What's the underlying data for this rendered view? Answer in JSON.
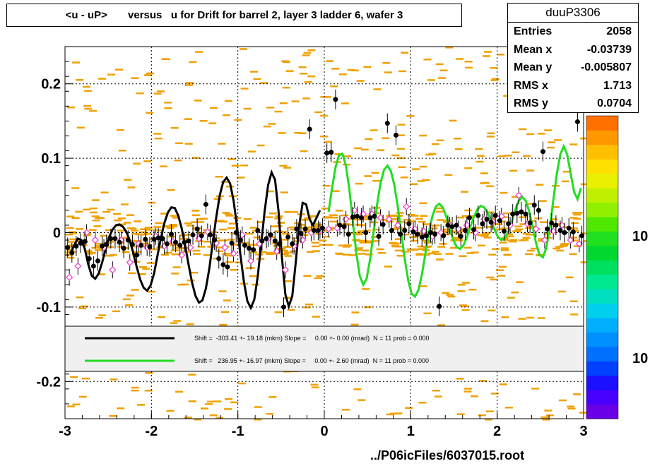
{
  "title": "<u - uP>       versus   u for Drift for barrel 2, layer 3 ladder 6, wafer 3",
  "footer": "../P06icFiles/6037015.root",
  "stats": {
    "name": "duuP3306",
    "rows": [
      {
        "label": "Entries",
        "value": "2058"
      },
      {
        "label": "Mean x",
        "value": "-0.03739"
      },
      {
        "label": "Mean y",
        "value": "-0.005807"
      },
      {
        "label": "RMS x",
        "value": "1.713"
      },
      {
        "label": "RMS y",
        "value": "0.0704"
      }
    ]
  },
  "colors": {
    "histogram_cells": "#f0a000",
    "black_fit": "#000000",
    "green_fit": "#22dd22",
    "open_markers": "#ee44cc",
    "legend_bg": "#f0f0f0"
  },
  "palette": [
    "#6a00e8",
    "#4800ff",
    "#1a10ff",
    "#0040ff",
    "#0070ff",
    "#0090ff",
    "#00b0ff",
    "#00d0ee",
    "#00e0c0",
    "#00e890",
    "#00e060",
    "#00d830",
    "#20e020",
    "#50e800",
    "#90f000",
    "#c0f000",
    "#e8f000",
    "#ffe000",
    "#ffc000",
    "#ff9800",
    "#ff7000"
  ],
  "chart_data": {
    "type": "scatter",
    "title": "<u - uP>       versus   u for Drift for barrel 2, layer 3 ladder 6, wafer 3",
    "xlabel": "",
    "ylabel": "",
    "xlim": [
      -3,
      3
    ],
    "ylim": [
      -0.25,
      0.25
    ],
    "x_ticks": [
      "-3",
      "-2",
      "-1",
      "0",
      "1",
      "2",
      "3"
    ],
    "y_ticks": [
      "0.2",
      "0.1",
      "0",
      "-0.1",
      "-0.2"
    ],
    "grid": true,
    "z_axis_labels": [
      "10",
      "10"
    ],
    "series": [
      {
        "marker": "black-filled",
        "x": [
          -2.97,
          -2.92,
          -2.87,
          -2.82,
          -2.77,
          -2.72,
          -2.67,
          -2.62,
          -2.57,
          -2.52,
          -2.47,
          -2.42,
          -2.37,
          -2.32,
          -2.27,
          -2.22,
          -2.17,
          -2.12,
          -2.07,
          -2.02,
          -1.97,
          -1.92,
          -1.87,
          -1.82,
          -1.77,
          -1.72,
          -1.67,
          -1.62,
          -1.57,
          -1.52,
          -1.47,
          -1.42,
          -1.37,
          -1.32,
          -1.27,
          -1.22,
          -1.17,
          -1.12,
          -1.07,
          -1.02,
          -0.97,
          -0.92,
          -0.87,
          -0.82,
          -0.77,
          -0.72,
          -0.67,
          -0.62,
          -0.57,
          -0.52,
          -0.47,
          -0.42,
          -0.37,
          -0.32,
          -0.27,
          -0.22,
          -0.17,
          -0.12,
          -0.07,
          -0.02,
          0.03,
          0.08,
          0.13,
          0.18,
          0.23,
          0.28,
          0.33,
          0.38,
          0.43,
          0.48,
          0.53,
          0.58,
          0.63,
          0.68,
          0.73,
          0.78,
          0.83,
          0.88,
          0.93,
          0.98,
          1.03,
          1.08,
          1.13,
          1.18,
          1.23,
          1.28,
          1.33,
          1.38,
          1.43,
          1.48,
          1.53,
          1.58,
          1.63,
          1.68,
          1.73,
          1.78,
          1.83,
          1.88,
          1.93,
          1.98,
          2.03,
          2.08,
          2.13,
          2.18,
          2.23,
          2.28,
          2.33,
          2.38,
          2.43,
          2.48,
          2.53,
          2.58,
          2.63,
          2.68,
          2.73,
          2.78,
          2.83,
          2.88,
          2.93,
          2.98
        ],
        "y": [
          -0.02,
          -0.027,
          -0.018,
          -0.014,
          -0.012,
          -0.035,
          -0.045,
          -0.038,
          -0.018,
          -0.016,
          -0.008,
          -0.008,
          -0.013,
          -0.021,
          -0.01,
          -0.016,
          -0.03,
          -0.017,
          -0.009,
          -0.019,
          -0.009,
          -0.007,
          -0.008,
          -0.015,
          -0.002,
          -0.013,
          -0.017,
          -0.013,
          -0.011,
          -0.003,
          0.005,
          -0.004,
          0.038,
          -0.003,
          -0.01,
          -0.035,
          -0.043,
          -0.046,
          -0.014,
          0.0,
          -0.01,
          -0.017,
          -0.021,
          -0.023,
          0.003,
          -0.011,
          -0.008,
          -0.003,
          -0.011,
          -0.015,
          -0.1,
          -0.006,
          -0.015,
          0.005,
          -0.001,
          0.005,
          0.139,
          0.003,
          0.003,
          0.006,
          0.107,
          0.108,
          0.179,
          0.01,
          0.008,
          -0.002,
          0.021,
          0.022,
          0.02,
          0.0,
          0.02,
          0.022,
          -0.005,
          0.011,
          0.147,
          0.003,
          0.131,
          -0.002,
          0.003,
          0.012,
          0.001,
          -0.002,
          -0.006,
          -0.004,
          0.0,
          -0.002,
          -0.099,
          -0.004,
          0.01,
          0.008,
          0.01,
          -0.005,
          0.003,
          0.02,
          0.004,
          0.023,
          0.012,
          0.018,
          0.014,
          0.023,
          0.016,
          0.002,
          0.012,
          0.025,
          0.026,
          0.028,
          0.025,
          0.013,
          0.037,
          0.03,
          0.109,
          0.005,
          0.013,
          0.01,
          0.003,
          0.0,
          0.006,
          0.001,
          0.149,
          -0.004
        ]
      },
      {
        "marker": "pink-open",
        "x": [
          -2.95,
          -2.85,
          -2.75,
          -2.65,
          -2.55,
          -2.45,
          -2.35,
          -2.25,
          -2.15,
          -2.05,
          -1.95,
          -1.85,
          -1.75,
          -1.65,
          -1.55,
          -1.45,
          -1.35,
          -1.25,
          -1.15,
          -1.05,
          -0.95,
          -0.85,
          -0.75,
          -0.65,
          -0.55,
          -0.45,
          -0.35,
          -0.25,
          -0.15,
          -0.05,
          0.05,
          0.15,
          0.25,
          0.35,
          0.45,
          0.55,
          0.65,
          0.75,
          0.85,
          0.95,
          1.05,
          1.15,
          1.25,
          1.35,
          1.45,
          1.55,
          1.65,
          1.75,
          1.85,
          1.95,
          2.05,
          2.15,
          2.25,
          2.35,
          2.45,
          2.55,
          2.65,
          2.75,
          2.85,
          2.95
        ],
        "y": [
          -0.06,
          -0.045,
          0.0,
          -0.01,
          -0.02,
          -0.05,
          -0.01,
          -0.04,
          -0.015,
          -0.02,
          -0.005,
          -0.018,
          -0.012,
          -0.03,
          -0.02,
          -0.008,
          0.001,
          -0.014,
          -0.02,
          -0.028,
          -0.003,
          -0.038,
          -0.015,
          -0.008,
          -0.025,
          -0.05,
          -0.018,
          -0.01,
          0.0,
          0.003,
          0.005,
          0.006,
          0.018,
          0.03,
          0.025,
          0.025,
          0.02,
          0.018,
          0.01,
          0.035,
          0.005,
          0.002,
          -0.005,
          0.0,
          0.01,
          0.005,
          0.01,
          0.0,
          0.018,
          0.015,
          0.022,
          0.01,
          0.05,
          0.012,
          0.005,
          -0.01,
          0.002,
          0.01,
          -0.01,
          -0.015
        ]
      }
    ],
    "fits": [
      {
        "color": "black",
        "label": "Shift =  -303.41 +- 19.18 (mkm) Slope =     0.00 +- 0.00 (mrad)  N = 11 prob = 0.000",
        "x": [
          -2.93,
          -2.89,
          -2.85,
          -2.81,
          -2.77,
          -2.73,
          -2.69,
          -2.65,
          -2.61,
          -2.57,
          -2.53,
          -2.49,
          -2.45,
          -2.41,
          -2.37,
          -2.33,
          -2.29,
          -2.25,
          -2.21,
          -2.17,
          -2.13,
          -2.09,
          -2.05,
          -2.01,
          -1.97,
          -1.93,
          -1.89,
          -1.85,
          -1.81,
          -1.77,
          -1.73,
          -1.69,
          -1.65,
          -1.61,
          -1.57,
          -1.53,
          -1.49,
          -1.45,
          -1.41,
          -1.37,
          -1.33,
          -1.29,
          -1.25,
          -1.21,
          -1.17,
          -1.13,
          -1.09,
          -1.05,
          -1.01,
          -0.97,
          -0.93,
          -0.89,
          -0.85,
          -0.81,
          -0.77,
          -0.73,
          -0.69,
          -0.65,
          -0.61,
          -0.57,
          -0.53,
          -0.49,
          -0.45,
          -0.41,
          -0.37,
          -0.33,
          -0.29,
          -0.25,
          -0.21,
          -0.17,
          -0.13,
          -0.09,
          -0.05
        ],
        "y": [
          -0.026,
          -0.016,
          -0.008,
          -0.01,
          -0.022,
          -0.043,
          -0.058,
          -0.062,
          -0.055,
          -0.04,
          -0.022,
          -0.006,
          0.004,
          0.01,
          0.011,
          0.008,
          0.001,
          -0.011,
          -0.027,
          -0.046,
          -0.063,
          -0.074,
          -0.078,
          -0.071,
          -0.055,
          -0.031,
          -0.007,
          0.013,
          0.027,
          0.034,
          0.033,
          0.023,
          0.006,
          -0.017,
          -0.043,
          -0.067,
          -0.085,
          -0.094,
          -0.091,
          -0.075,
          -0.048,
          -0.013,
          0.021,
          0.05,
          0.068,
          0.074,
          0.066,
          0.043,
          0.009,
          -0.03,
          -0.066,
          -0.092,
          -0.101,
          -0.09,
          -0.059,
          -0.015,
          0.029,
          0.064,
          0.081,
          0.071,
          0.029,
          -0.034,
          -0.083,
          -0.099,
          -0.085,
          -0.04,
          0.01,
          0.04,
          0.038,
          0.018,
          0.01,
          0.02,
          0.03
        ]
      },
      {
        "color": "green",
        "label": "Shift =   236.95 +- 16.97 (mkm) Slope =     0.00 +- 2.60 (mrad)  N = 11 prob = 0.000",
        "x": [
          0.05,
          0.09,
          0.13,
          0.17,
          0.21,
          0.25,
          0.29,
          0.33,
          0.37,
          0.41,
          0.45,
          0.49,
          0.53,
          0.57,
          0.61,
          0.65,
          0.69,
          0.73,
          0.77,
          0.81,
          0.85,
          0.89,
          0.93,
          0.97,
          1.01,
          1.05,
          1.09,
          1.13,
          1.17,
          1.21,
          1.25,
          1.29,
          1.33,
          1.37,
          1.41,
          1.45,
          1.49,
          1.53,
          1.57,
          1.61,
          1.65,
          1.69,
          1.73,
          1.77,
          1.81,
          1.85,
          1.89,
          1.93,
          1.97,
          2.01,
          2.05,
          2.09,
          2.13,
          2.17,
          2.21,
          2.25,
          2.29,
          2.33,
          2.37,
          2.41,
          2.45,
          2.49,
          2.53,
          2.57,
          2.61,
          2.65,
          2.69,
          2.73,
          2.77,
          2.81,
          2.85,
          2.89,
          2.93,
          2.97
        ],
        "y": [
          0.028,
          0.06,
          0.088,
          0.104,
          0.106,
          0.09,
          0.058,
          0.015,
          -0.027,
          -0.058,
          -0.07,
          -0.062,
          -0.036,
          0.0,
          0.037,
          0.066,
          0.084,
          0.09,
          0.083,
          0.064,
          0.035,
          0.0,
          -0.035,
          -0.064,
          -0.082,
          -0.086,
          -0.077,
          -0.056,
          -0.028,
          0.0,
          0.022,
          0.035,
          0.039,
          0.034,
          0.022,
          0.006,
          -0.009,
          -0.019,
          -0.022,
          -0.017,
          -0.006,
          0.008,
          0.021,
          0.031,
          0.036,
          0.034,
          0.027,
          0.016,
          0.004,
          -0.006,
          -0.01,
          -0.007,
          0.002,
          0.016,
          0.031,
          0.043,
          0.048,
          0.043,
          0.029,
          0.008,
          -0.014,
          -0.03,
          -0.033,
          -0.02,
          0.008,
          0.044,
          0.079,
          0.105,
          0.116,
          0.105,
          0.08,
          0.055,
          0.045,
          0.06
        ]
      }
    ]
  }
}
